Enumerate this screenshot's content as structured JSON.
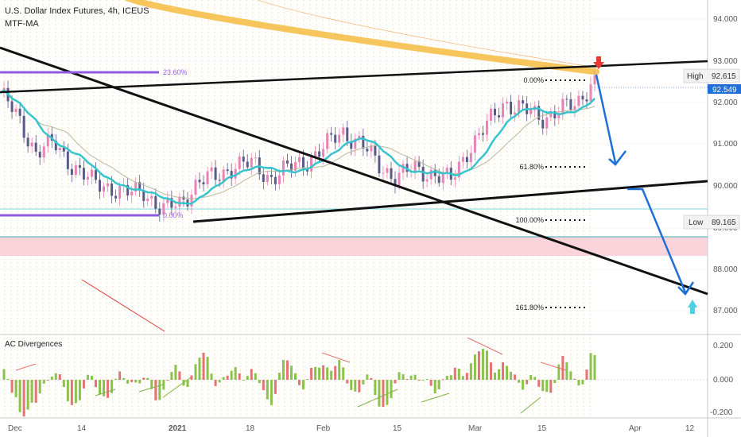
{
  "header": {
    "symbol_title": "U.S. Dollar Index Futures, 4h, ICEUS",
    "indicator_label": "MTF-MA"
  },
  "price_axis": {
    "ticks": [
      "94.000",
      "93.000",
      "92.000",
      "91.000",
      "90.000",
      "89.000",
      "88.000",
      "87.000"
    ],
    "current_price_label": "92.549"
  },
  "time_axis": {
    "ticks": [
      "Dec",
      "14",
      "2021",
      "18",
      "Feb",
      "15",
      "Mar",
      "15",
      "Apr",
      "12"
    ]
  },
  "markers": {
    "high_label": "High",
    "high_value": "92.615",
    "low_label": "Low",
    "low_value": "89.165"
  },
  "fib_left": {
    "level_a": "23.60%",
    "level_b": "0.00%"
  },
  "fib_right": {
    "level_0": "0.00%",
    "level_618": "61.80%",
    "level_100": "100.00%",
    "level_1618": "161.80%"
  },
  "oscillator": {
    "title": "AC Divergences",
    "ticks": [
      "0.200",
      "0.000",
      "-0.200"
    ]
  },
  "colors": {
    "bull_candle": "#e884b5",
    "bear_candle": "#5a5a8a",
    "ma_fast": "#38c4cc",
    "ma_slow": "#c8c8a0",
    "ma_long": "#f5c04a",
    "trendline": "#111111",
    "forecast_arrow": "#1f6fd6",
    "fib_purple": "#9b5de5",
    "support_zone": "#f9c9d2",
    "sell_marker": "#e53935",
    "buy_marker": "#4dd0e1"
  },
  "chart_data": {
    "type": "line",
    "title": "U.S. Dollar Index Futures, 4h, ICEUS",
    "xlabel": "",
    "ylabel": "",
    "x_ticks": [
      "Dec",
      "14",
      "2021",
      "18",
      "Feb",
      "15",
      "Mar",
      "15",
      "Apr",
      "12"
    ],
    "ylim": [
      86.5,
      94.4
    ],
    "series": [
      {
        "name": "",
        "x": [
          "Nov 30",
          "Dec 3",
          "Dec 7",
          "Dec 10",
          "Dec 14",
          "Dec 17",
          "Dec 21",
          "Dec 24",
          "Dec 28",
          "Dec 31",
          "Jan 5",
          "Jan 8",
          "Jan 12",
          "Jan 15",
          "Jan 19",
          "Jan 22",
          "Jan 26",
          "Jan 29",
          "Feb 2",
          "Feb 5",
          "Feb 9",
          "Feb 12",
          "Feb 16",
          "Feb 19",
          "Feb 23",
          "Feb 26",
          "Mar 2",
          "Mar 5",
          "Mar 9",
          "Mar 12",
          "Mar 16",
          "Mar 19",
          "Mar 23",
          "Mar 25"
        ],
        "values": [
          92.2,
          91.6,
          90.8,
          91.0,
          90.5,
          90.1,
          90.0,
          89.8,
          89.9,
          89.4,
          89.6,
          90.1,
          90.2,
          90.5,
          90.5,
          90.2,
          90.4,
          90.6,
          90.9,
          91.3,
          91.0,
          90.5,
          90.2,
          90.4,
          90.3,
          90.1,
          90.9,
          91.4,
          92.0,
          91.8,
          91.6,
          91.8,
          91.9,
          92.615
        ]
      }
    ],
    "high": 92.615,
    "low": 89.165,
    "fib_levels_left": [
      "23.60%",
      "0.00%"
    ],
    "fib_levels_right": [
      "0.00%",
      "61.80%",
      "100.00%",
      "161.80%"
    ],
    "oscillator": {
      "name": "AC Divergences",
      "ylim": [
        -0.2,
        0.2
      ]
    }
  }
}
